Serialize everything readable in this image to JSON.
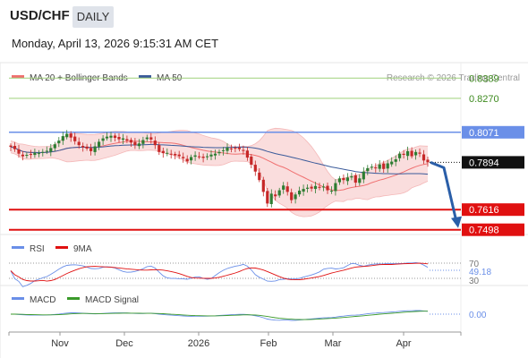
{
  "header": {
    "symbol": "USD/CHF",
    "period": "DAILY",
    "timestamp": "Monday, April 13, 2026 9:15:31 AM CET"
  },
  "legend": {
    "ma20_bb": "MA 20 + Bollinger Bands",
    "ma50": "MA 50",
    "credit": "Research © 2026 Trading Central",
    "rsi": "RSI",
    "rsi_ma": "9MA",
    "macd": "MACD",
    "macd_signal": "MACD Signal"
  },
  "colors": {
    "up_candle": "#2e7d32",
    "down_candle": "#c62828",
    "bollinger_fill": "#f9d4d4",
    "ma20": "#f07070",
    "ma50": "#3a5a9a",
    "resistance": "#9fd07a",
    "pivot": "#6a8fe8",
    "support": "#e01010",
    "last": "#111111",
    "arrow": "#2a5ea8",
    "rsi": "#6a8fe8",
    "rsi_ma": "#e01010",
    "macd": "#6a8fe8",
    "macd_signal": "#3a9a2a"
  },
  "levels": [
    {
      "value": 0.8389,
      "label": "0.8389",
      "kind": "resistance"
    },
    {
      "value": 0.827,
      "label": "0.8270",
      "kind": "resistance"
    },
    {
      "value": 0.8071,
      "label": "0.8071",
      "kind": "pivot"
    },
    {
      "value": 0.7894,
      "label": "0.7894",
      "kind": "last"
    },
    {
      "value": 0.7616,
      "label": "0.7616",
      "kind": "support"
    },
    {
      "value": 0.7498,
      "label": "0.7498",
      "kind": "support"
    }
  ],
  "rsi_panel": {
    "value_label": "49.18",
    "upper": "70",
    "lower": "30"
  },
  "macd_panel": {
    "value_label": "0.00"
  },
  "x_axis": {
    "labels": [
      "Nov",
      "Dec",
      "2026",
      "Feb",
      "Mar",
      "Apr"
    ]
  },
  "chart_data": {
    "type": "candlestick",
    "instrument": "USD/CHF",
    "interval": "daily",
    "price_range": [
      0.747,
      0.848
    ],
    "closes_approx": [
      0.7985,
      0.7972,
      0.7945,
      0.793,
      0.7938,
      0.7942,
      0.795,
      0.7948,
      0.7955,
      0.7962,
      0.7978,
      0.8,
      0.8022,
      0.8048,
      0.8062,
      0.804,
      0.8018,
      0.7995,
      0.7982,
      0.7975,
      0.796,
      0.7988,
      0.8015,
      0.8035,
      0.8045,
      0.805,
      0.8038,
      0.803,
      0.8035,
      0.8022,
      0.801,
      0.7995,
      0.8005,
      0.8025,
      0.804,
      0.8028,
      0.7995,
      0.7955,
      0.7948,
      0.795,
      0.794,
      0.7935,
      0.793,
      0.7918,
      0.79,
      0.7925,
      0.7935,
      0.7928,
      0.792,
      0.793,
      0.794,
      0.7945,
      0.7955,
      0.7965,
      0.798,
      0.7975,
      0.7978,
      0.7972,
      0.7965,
      0.7922,
      0.788,
      0.784,
      0.779,
      0.772,
      0.7652,
      0.771,
      0.7695,
      0.773,
      0.7758,
      0.772,
      0.7672,
      0.7705,
      0.7728,
      0.7738,
      0.7745,
      0.774,
      0.7755,
      0.7745,
      0.7752,
      0.773,
      0.7728,
      0.7772,
      0.78,
      0.779,
      0.7805,
      0.7812,
      0.7775,
      0.78,
      0.784,
      0.786,
      0.7868,
      0.786,
      0.7882,
      0.7855,
      0.7888,
      0.7898,
      0.7912,
      0.7945,
      0.7938,
      0.796,
      0.793,
      0.7955,
      0.7945,
      0.7905,
      0.7894
    ],
    "last_price": 0.7894,
    "support_levels": [
      0.7616,
      0.7498
    ],
    "pivot": 0.8071,
    "resistance_levels": [
      0.827,
      0.8389
    ],
    "indicators": [
      "MA 20 + Bollinger Bands",
      "MA 50",
      "RSI",
      "9MA",
      "MACD",
      "MACD Signal"
    ],
    "rsi": {
      "last": 49.18,
      "levels": [
        30,
        70
      ]
    },
    "macd": {
      "last": 0.0
    },
    "x_tick_labels": [
      "Nov",
      "Dec",
      "2026",
      "Feb",
      "Mar",
      "Apr"
    ]
  }
}
